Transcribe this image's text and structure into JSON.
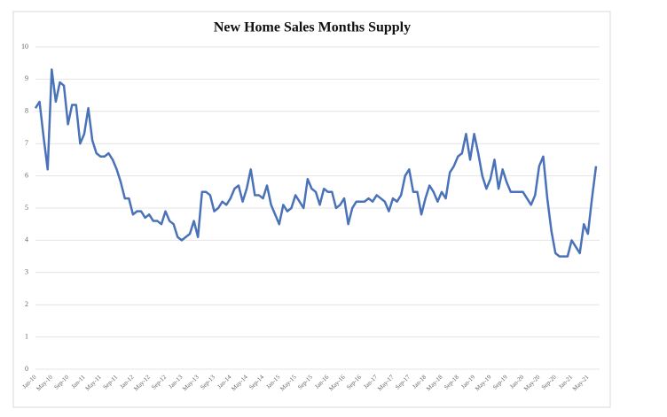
{
  "chart_data": {
    "type": "line",
    "title": "New Home Sales Months Supply",
    "categories": [
      "Jan-10",
      null,
      null,
      null,
      "May-10",
      null,
      null,
      null,
      "Sep-10",
      null,
      null,
      null,
      "Jan-11",
      null,
      null,
      null,
      "May-11",
      null,
      null,
      null,
      "Sep-11",
      null,
      null,
      null,
      "Jan-12",
      null,
      null,
      null,
      "May-12",
      null,
      null,
      null,
      "Sep-12",
      null,
      null,
      null,
      "Jan-13",
      null,
      null,
      null,
      "May-13",
      null,
      null,
      null,
      "Sep-13",
      null,
      null,
      null,
      "Jan-14",
      null,
      null,
      null,
      "May-14",
      null,
      null,
      null,
      "Sep-14",
      null,
      null,
      null,
      "Jan-15",
      null,
      null,
      null,
      "May-15",
      null,
      null,
      null,
      "Sep-15",
      null,
      null,
      null,
      "Jan-16",
      null,
      null,
      null,
      "May-16",
      null,
      null,
      null,
      "Sep-16",
      null,
      null,
      null,
      "Jan-17",
      null,
      null,
      null,
      "May-17",
      null,
      null,
      null,
      "Sep-17",
      null,
      null,
      null,
      "Jan-18",
      null,
      null,
      null,
      "May-18",
      null,
      null,
      null,
      "Sep-18",
      null,
      null,
      null,
      "Jan-19",
      null,
      null,
      null,
      "May-19",
      null,
      null,
      null,
      "Sep-19",
      null,
      null,
      null,
      "Jan-20",
      null,
      null,
      null,
      "May-20",
      null,
      null,
      null,
      "Sep-20",
      null,
      null,
      null,
      "Jan-21",
      null,
      null,
      null,
      "May-21",
      null,
      null
    ],
    "series": [
      {
        "name": "Months Supply",
        "color": "#4a72b8",
        "values": [
          8.1,
          8.3,
          7.2,
          6.2,
          9.3,
          8.3,
          8.9,
          8.8,
          7.6,
          8.2,
          8.2,
          7.0,
          7.3,
          8.1,
          7.1,
          6.7,
          6.6,
          6.6,
          6.7,
          6.5,
          6.2,
          5.8,
          5.3,
          5.3,
          4.8,
          4.9,
          4.9,
          4.7,
          4.8,
          4.6,
          4.6,
          4.5,
          4.9,
          4.6,
          4.5,
          4.1,
          4.0,
          4.1,
          4.2,
          4.6,
          4.1,
          5.5,
          5.5,
          5.4,
          4.9,
          5.0,
          5.2,
          5.1,
          5.3,
          5.6,
          5.7,
          5.2,
          5.6,
          6.2,
          5.4,
          5.4,
          5.3,
          5.7,
          5.1,
          4.8,
          4.5,
          5.1,
          4.9,
          5.0,
          5.4,
          5.2,
          5.0,
          5.9,
          5.6,
          5.5,
          5.1,
          5.6,
          5.5,
          5.5,
          5.0,
          5.1,
          5.3,
          4.5,
          5.0,
          5.2,
          5.2,
          5.2,
          5.3,
          5.2,
          5.4,
          5.3,
          5.2,
          4.9,
          5.3,
          5.2,
          5.4,
          6.0,
          6.2,
          5.5,
          5.5,
          4.8,
          5.3,
          5.7,
          5.5,
          5.2,
          5.5,
          5.3,
          6.1,
          6.3,
          6.6,
          6.7,
          7.3,
          6.5,
          7.3,
          6.7,
          6.0,
          5.6,
          5.9,
          6.5,
          5.6,
          6.2,
          5.8,
          5.5,
          5.5,
          5.5,
          5.5,
          5.3,
          5.1,
          5.4,
          6.3,
          6.6,
          5.3,
          4.3,
          3.6,
          3.5,
          3.5,
          3.5,
          4.0,
          3.8,
          3.6,
          4.5,
          4.2,
          5.3,
          6.3
        ]
      }
    ],
    "ylim": [
      0,
      10
    ],
    "yticks": [
      0,
      1,
      2,
      3,
      4,
      5,
      6,
      7,
      8,
      9,
      10
    ],
    "grid": true
  }
}
